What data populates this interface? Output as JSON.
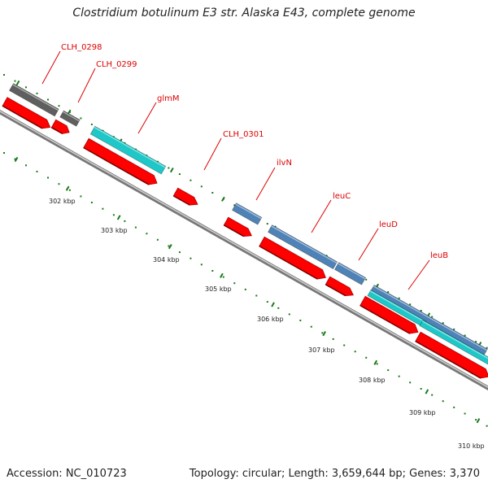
{
  "title": "Clostridium botulinum E3 str. Alaska E43, complete genome",
  "footer": {
    "accession": "Accession: NC_010723",
    "summary": "Topology: circular; Length: 3,659,644 bp; Genes: 3,370"
  },
  "colors": {
    "cds": "#ff0000",
    "label_line": "#dd0000",
    "backbone": "#8c8c8c",
    "dots": "#1a7a1a",
    "gray_gene": "#5f5f5f",
    "cyan_gene": "#1ec8c8",
    "blue_gene": "#4f82b6"
  },
  "ticks": [
    {
      "label": "302 kbp"
    },
    {
      "label": "303 kbp"
    },
    {
      "label": "304 kbp"
    },
    {
      "label": "305 kbp"
    },
    {
      "label": "306 kbp"
    },
    {
      "label": "307 kbp"
    },
    {
      "label": "308 kbp"
    },
    {
      "label": "309 kbp"
    },
    {
      "label": "310 kbp"
    }
  ],
  "genes": [
    {
      "label": "CLH_0298"
    },
    {
      "label": "CLH_0299"
    },
    {
      "label": "glmM"
    },
    {
      "label": "CLH_0301"
    },
    {
      "label": "ilvN"
    },
    {
      "label": "leuC"
    },
    {
      "label": "leuD"
    },
    {
      "label": "leuB"
    }
  ]
}
